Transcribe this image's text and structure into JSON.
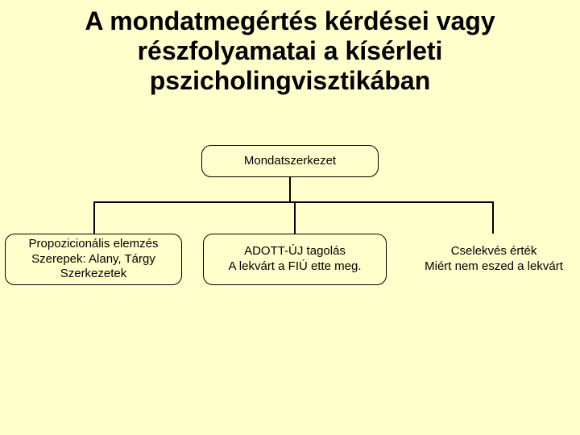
{
  "slide": {
    "title": "A mondatmegértés kérdései vagy részfolyamatai a kísérleti pszicholingvisztikában",
    "background_color": "#ffffcb",
    "title_fontsize": 32,
    "title_color": "#000000"
  },
  "diagram": {
    "type": "tree",
    "node_border_color": "#000000",
    "node_fill_color": "#ffffcb",
    "node_border_radius": 12,
    "node_fontsize": 15,
    "connector_color": "#000000",
    "root": {
      "label": "Mondatszerkezet"
    },
    "children": [
      {
        "line1": "Propozicionális elemzés",
        "line2": "Szerepek: Alany, Tárgy",
        "line3": "Szerkezetek"
      },
      {
        "line1": "ADOTT-ÚJ tagolás",
        "line2": "A lekvárt a FIÚ ette meg."
      },
      {
        "line1": "Cselekvés érték",
        "line2": "Miért nem eszed a lekvárt"
      }
    ]
  }
}
